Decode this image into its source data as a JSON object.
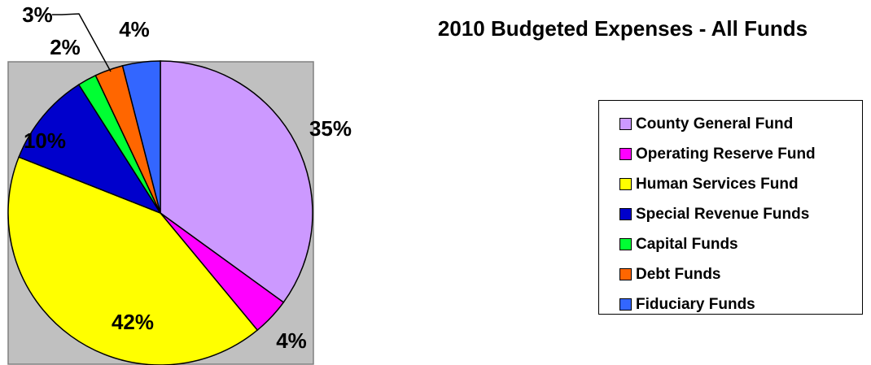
{
  "chart_data": {
    "type": "pie",
    "title": "2010 Budgeted Expenses - All Funds",
    "slices": [
      {
        "name": "County General Fund",
        "value": 35,
        "label": "35%",
        "color": "#cc99ff"
      },
      {
        "name": "Operating Reserve Fund",
        "value": 4,
        "label": "4%",
        "color": "#ff00ff"
      },
      {
        "name": "Human Services Fund",
        "value": 42,
        "label": "42%",
        "color": "#ffff00"
      },
      {
        "name": "Special Revenue Funds",
        "value": 10,
        "label": "10%",
        "color": "#0000cc"
      },
      {
        "name": "Capital Funds",
        "value": 2,
        "label": "2%",
        "color": "#00ff33"
      },
      {
        "name": "Debt Funds",
        "value": 3,
        "label": "3%",
        "color": "#ff6600"
      },
      {
        "name": "Fiduciary Funds",
        "value": 4,
        "label": "4%",
        "color": "#3366ff"
      }
    ],
    "legend_position": "right",
    "plot_background": "#c0c0c0",
    "start_angle_deg": 0,
    "direction": "clockwise"
  }
}
